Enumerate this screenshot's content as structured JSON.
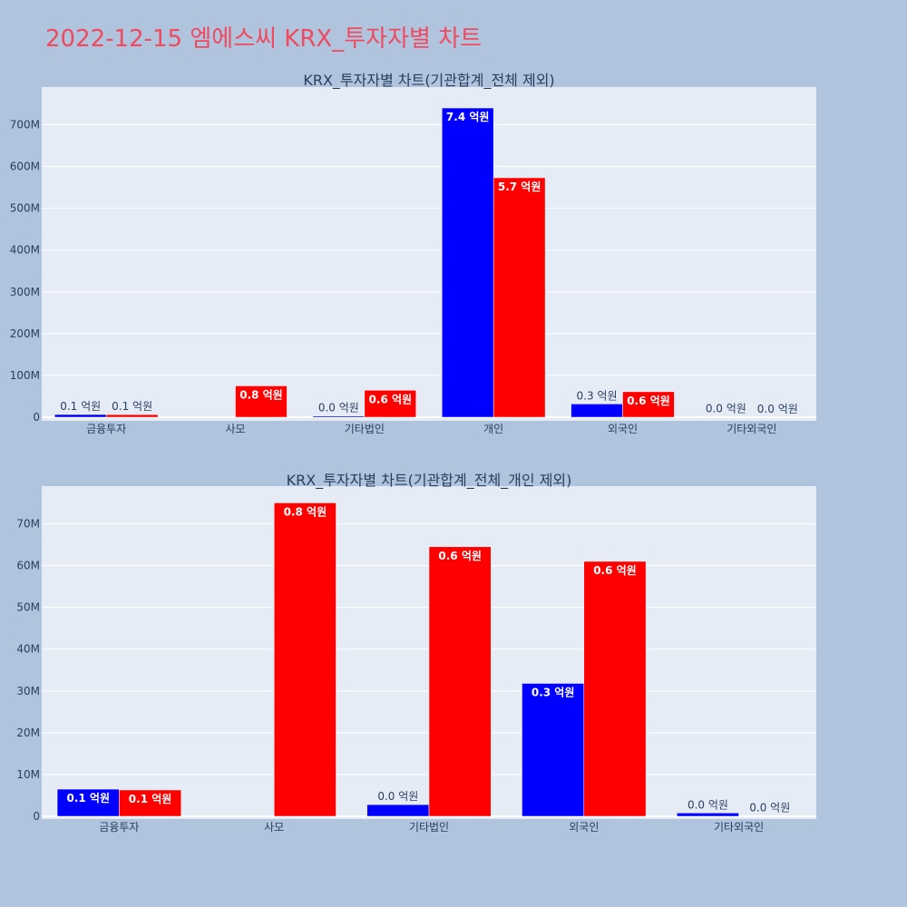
{
  "page": {
    "title": "2022-12-15 엠에스씨 KRX_투자자별 차트"
  },
  "colors": {
    "background": "#b0c4de",
    "plot_background": "#e5ecf6",
    "title": "#ef4a5f",
    "series_blue": "#0000ff",
    "series_red": "#ff0000"
  },
  "chart_data": [
    {
      "type": "bar",
      "title": "KRX_투자자별 차트(기관합계_전체 제외)",
      "categories": [
        "금융투자",
        "사모",
        "기타법인",
        "개인",
        "외국인",
        "기타외국인"
      ],
      "ylim": [
        0,
        790000000
      ],
      "yticks": [
        0,
        100000000,
        200000000,
        300000000,
        400000000,
        500000000,
        600000000,
        700000000
      ],
      "ytick_labels": [
        "0",
        "100M",
        "200M",
        "300M",
        "400M",
        "500M",
        "600M",
        "700M"
      ],
      "grid": true,
      "series": [
        {
          "color": "#0000ff",
          "values": [
            6500000,
            0,
            2800000,
            740000000,
            31800000,
            800000
          ],
          "labels": [
            "0.1 억원",
            "",
            "0.0 억원",
            "7.4 억원",
            "0.3 억원",
            "0.0 억원"
          ]
        },
        {
          "color": "#ff0000",
          "values": [
            6300000,
            75000000,
            64500000,
            573000000,
            61000000,
            100000
          ],
          "labels": [
            "0.1 억원",
            "0.8 억원",
            "0.6 억원",
            "5.7 억원",
            "0.6 억원",
            "0.0 억원"
          ]
        }
      ]
    },
    {
      "type": "bar",
      "title": "KRX_투자자별 차트(기관합계_전체_개인 제외)",
      "categories": [
        "금융투자",
        "사모",
        "기타법인",
        "외국인",
        "기타외국인"
      ],
      "ylim": [
        0,
        79000000
      ],
      "yticks": [
        0,
        10000000,
        20000000,
        30000000,
        40000000,
        50000000,
        60000000,
        70000000
      ],
      "ytick_labels": [
        "0",
        "10M",
        "20M",
        "30M",
        "40M",
        "50M",
        "60M",
        "70M"
      ],
      "grid": true,
      "series": [
        {
          "color": "#0000ff",
          "values": [
            6500000,
            0,
            2800000,
            31800000,
            800000
          ],
          "labels": [
            "0.1 억원",
            "",
            "0.0 억원",
            "0.3 억원",
            "0.0 억원"
          ]
        },
        {
          "color": "#ff0000",
          "values": [
            6300000,
            75000000,
            64500000,
            61000000,
            100000
          ],
          "labels": [
            "0.1 억원",
            "0.8 억원",
            "0.6 억원",
            "0.6 억원",
            "0.0 억원"
          ]
        }
      ]
    }
  ]
}
